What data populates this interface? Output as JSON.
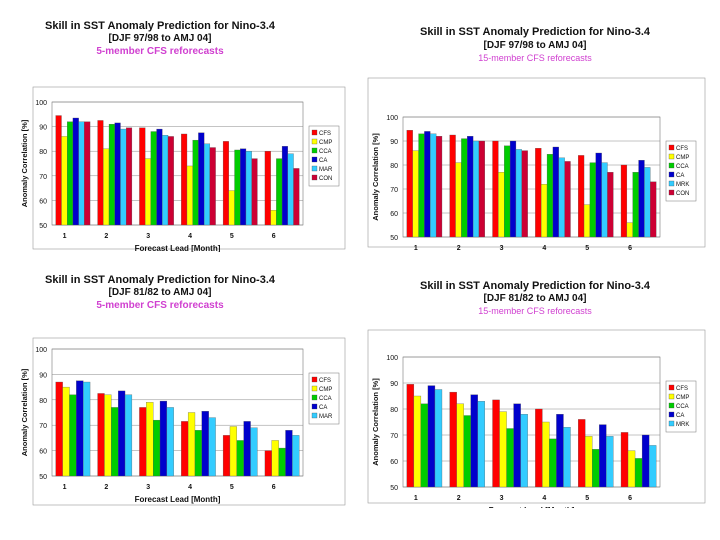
{
  "chart_data": [
    {
      "type": "bar",
      "title": "Skill in SST Anomaly Prediction for Nino-3.4",
      "subtitle": "[DJF 97/98 to AMJ 04]",
      "note": "5-member CFS reforecasts",
      "xlabel": "Forecast Lead [Month]",
      "ylabel": "Anomaly Correlation [%]",
      "categories": [
        "1",
        "2",
        "3",
        "4",
        "5",
        "6"
      ],
      "ylim": [
        50,
        100
      ],
      "yticks": [
        "50",
        "60",
        "70",
        "80",
        "90",
        "100"
      ],
      "legend_position": "right",
      "series": [
        {
          "name": "CFS",
          "color": "#ff0000",
          "values": [
            94.5,
            92.5,
            89.5,
            87,
            84,
            80
          ]
        },
        {
          "name": "CMP",
          "color": "#ffff00",
          "values": [
            86,
            81,
            77,
            74,
            64,
            56
          ]
        },
        {
          "name": "CCA",
          "color": "#00cc00",
          "values": [
            92,
            91,
            88,
            84.5,
            80.5,
            77
          ]
        },
        {
          "name": "CA",
          "color": "#0000cc",
          "values": [
            93.5,
            91.5,
            89,
            87.5,
            81,
            82
          ]
        },
        {
          "name": "MAR",
          "color": "#33ccff",
          "values": [
            92,
            89,
            86.5,
            83,
            80,
            79
          ]
        },
        {
          "name": "CON",
          "color": "#cc0033",
          "values": [
            92,
            89.5,
            86,
            81.5,
            77,
            73
          ]
        }
      ]
    },
    {
      "type": "bar",
      "title": "Skill in SST Anomaly Prediction for Nino-3.4",
      "subtitle": "[DJF 97/98 to AMJ 04]",
      "note": "15-member CFS reforecasts",
      "xlabel": "Forecast Lead [Month]",
      "ylabel": "Anomaly Correlation [%]",
      "categories": [
        "1",
        "2",
        "3",
        "4",
        "5",
        "6"
      ],
      "ylim": [
        50,
        100
      ],
      "yticks": [
        "50",
        "60",
        "70",
        "80",
        "90",
        "100"
      ],
      "legend_position": "right",
      "series": [
        {
          "name": "CFS",
          "color": "#ff0000",
          "values": [
            94.5,
            92.5,
            90,
            87,
            84,
            80
          ]
        },
        {
          "name": "CMP",
          "color": "#ffff00",
          "values": [
            86,
            81,
            77,
            72,
            63.5,
            56
          ]
        },
        {
          "name": "CCA",
          "color": "#00cc00",
          "values": [
            93,
            91,
            88,
            84.5,
            81,
            77
          ]
        },
        {
          "name": "CA",
          "color": "#0000cc",
          "values": [
            94,
            92,
            90,
            87.5,
            85,
            82
          ]
        },
        {
          "name": "MRK",
          "color": "#33ccff",
          "values": [
            93,
            90,
            86.5,
            83,
            81,
            79
          ]
        },
        {
          "name": "CON",
          "color": "#cc0033",
          "values": [
            92,
            90,
            86,
            81.5,
            77,
            73
          ]
        }
      ]
    },
    {
      "type": "bar",
      "title": "Skill in SST Anomaly Prediction for Nino-3.4",
      "subtitle": "[DJF 81/82 to AMJ 04]",
      "note": "5-member CFS reforecasts",
      "xlabel": "Forecast Lead [Month]",
      "ylabel": "Anomaly Correlation [%]",
      "categories": [
        "1",
        "2",
        "3",
        "4",
        "5",
        "6"
      ],
      "ylim": [
        50,
        100
      ],
      "yticks": [
        "50",
        "60",
        "70",
        "80",
        "90",
        "100"
      ],
      "legend_position": "right",
      "series": [
        {
          "name": "CFS",
          "color": "#ff0000",
          "values": [
            87,
            82.5,
            77,
            71.5,
            66,
            60
          ]
        },
        {
          "name": "CMP",
          "color": "#ffff00",
          "values": [
            85,
            82,
            79,
            75,
            69.5,
            64
          ]
        },
        {
          "name": "CCA",
          "color": "#00cc00",
          "values": [
            82,
            77,
            72,
            68,
            64,
            61
          ]
        },
        {
          "name": "CA",
          "color": "#0000cc",
          "values": [
            87.5,
            83.5,
            79.5,
            75.5,
            71.5,
            68
          ]
        },
        {
          "name": "MAR",
          "color": "#33ccff",
          "values": [
            87,
            82,
            77,
            73,
            69,
            66
          ]
        }
      ]
    },
    {
      "type": "bar",
      "title": "Skill in SST Anomaly Prediction for Nino-3.4",
      "subtitle": "[DJF 81/82 to AMJ 04]",
      "note": "15-member CFS reforecasts",
      "xlabel": "Forecast Lead [Month]",
      "ylabel": "Anomaly Correlation [%]",
      "categories": [
        "1",
        "2",
        "3",
        "4",
        "5",
        "6"
      ],
      "ylim": [
        50,
        100
      ],
      "yticks": [
        "50",
        "60",
        "70",
        "80",
        "90",
        "100"
      ],
      "legend_position": "right",
      "series": [
        {
          "name": "CFS",
          "color": "#ff0000",
          "values": [
            89.5,
            86.5,
            83.5,
            80,
            76,
            71
          ]
        },
        {
          "name": "CMP",
          "color": "#ffff00",
          "values": [
            85,
            82,
            79,
            75,
            69.5,
            64
          ]
        },
        {
          "name": "CCA",
          "color": "#00cc00",
          "values": [
            82,
            77.5,
            72.5,
            68.5,
            64.5,
            61
          ]
        },
        {
          "name": "CA",
          "color": "#0000cc",
          "values": [
            89,
            85.5,
            82,
            78,
            74,
            70
          ]
        },
        {
          "name": "MRK",
          "color": "#33ccff",
          "values": [
            87.5,
            83,
            78,
            73,
            69.5,
            66
          ]
        }
      ]
    }
  ]
}
